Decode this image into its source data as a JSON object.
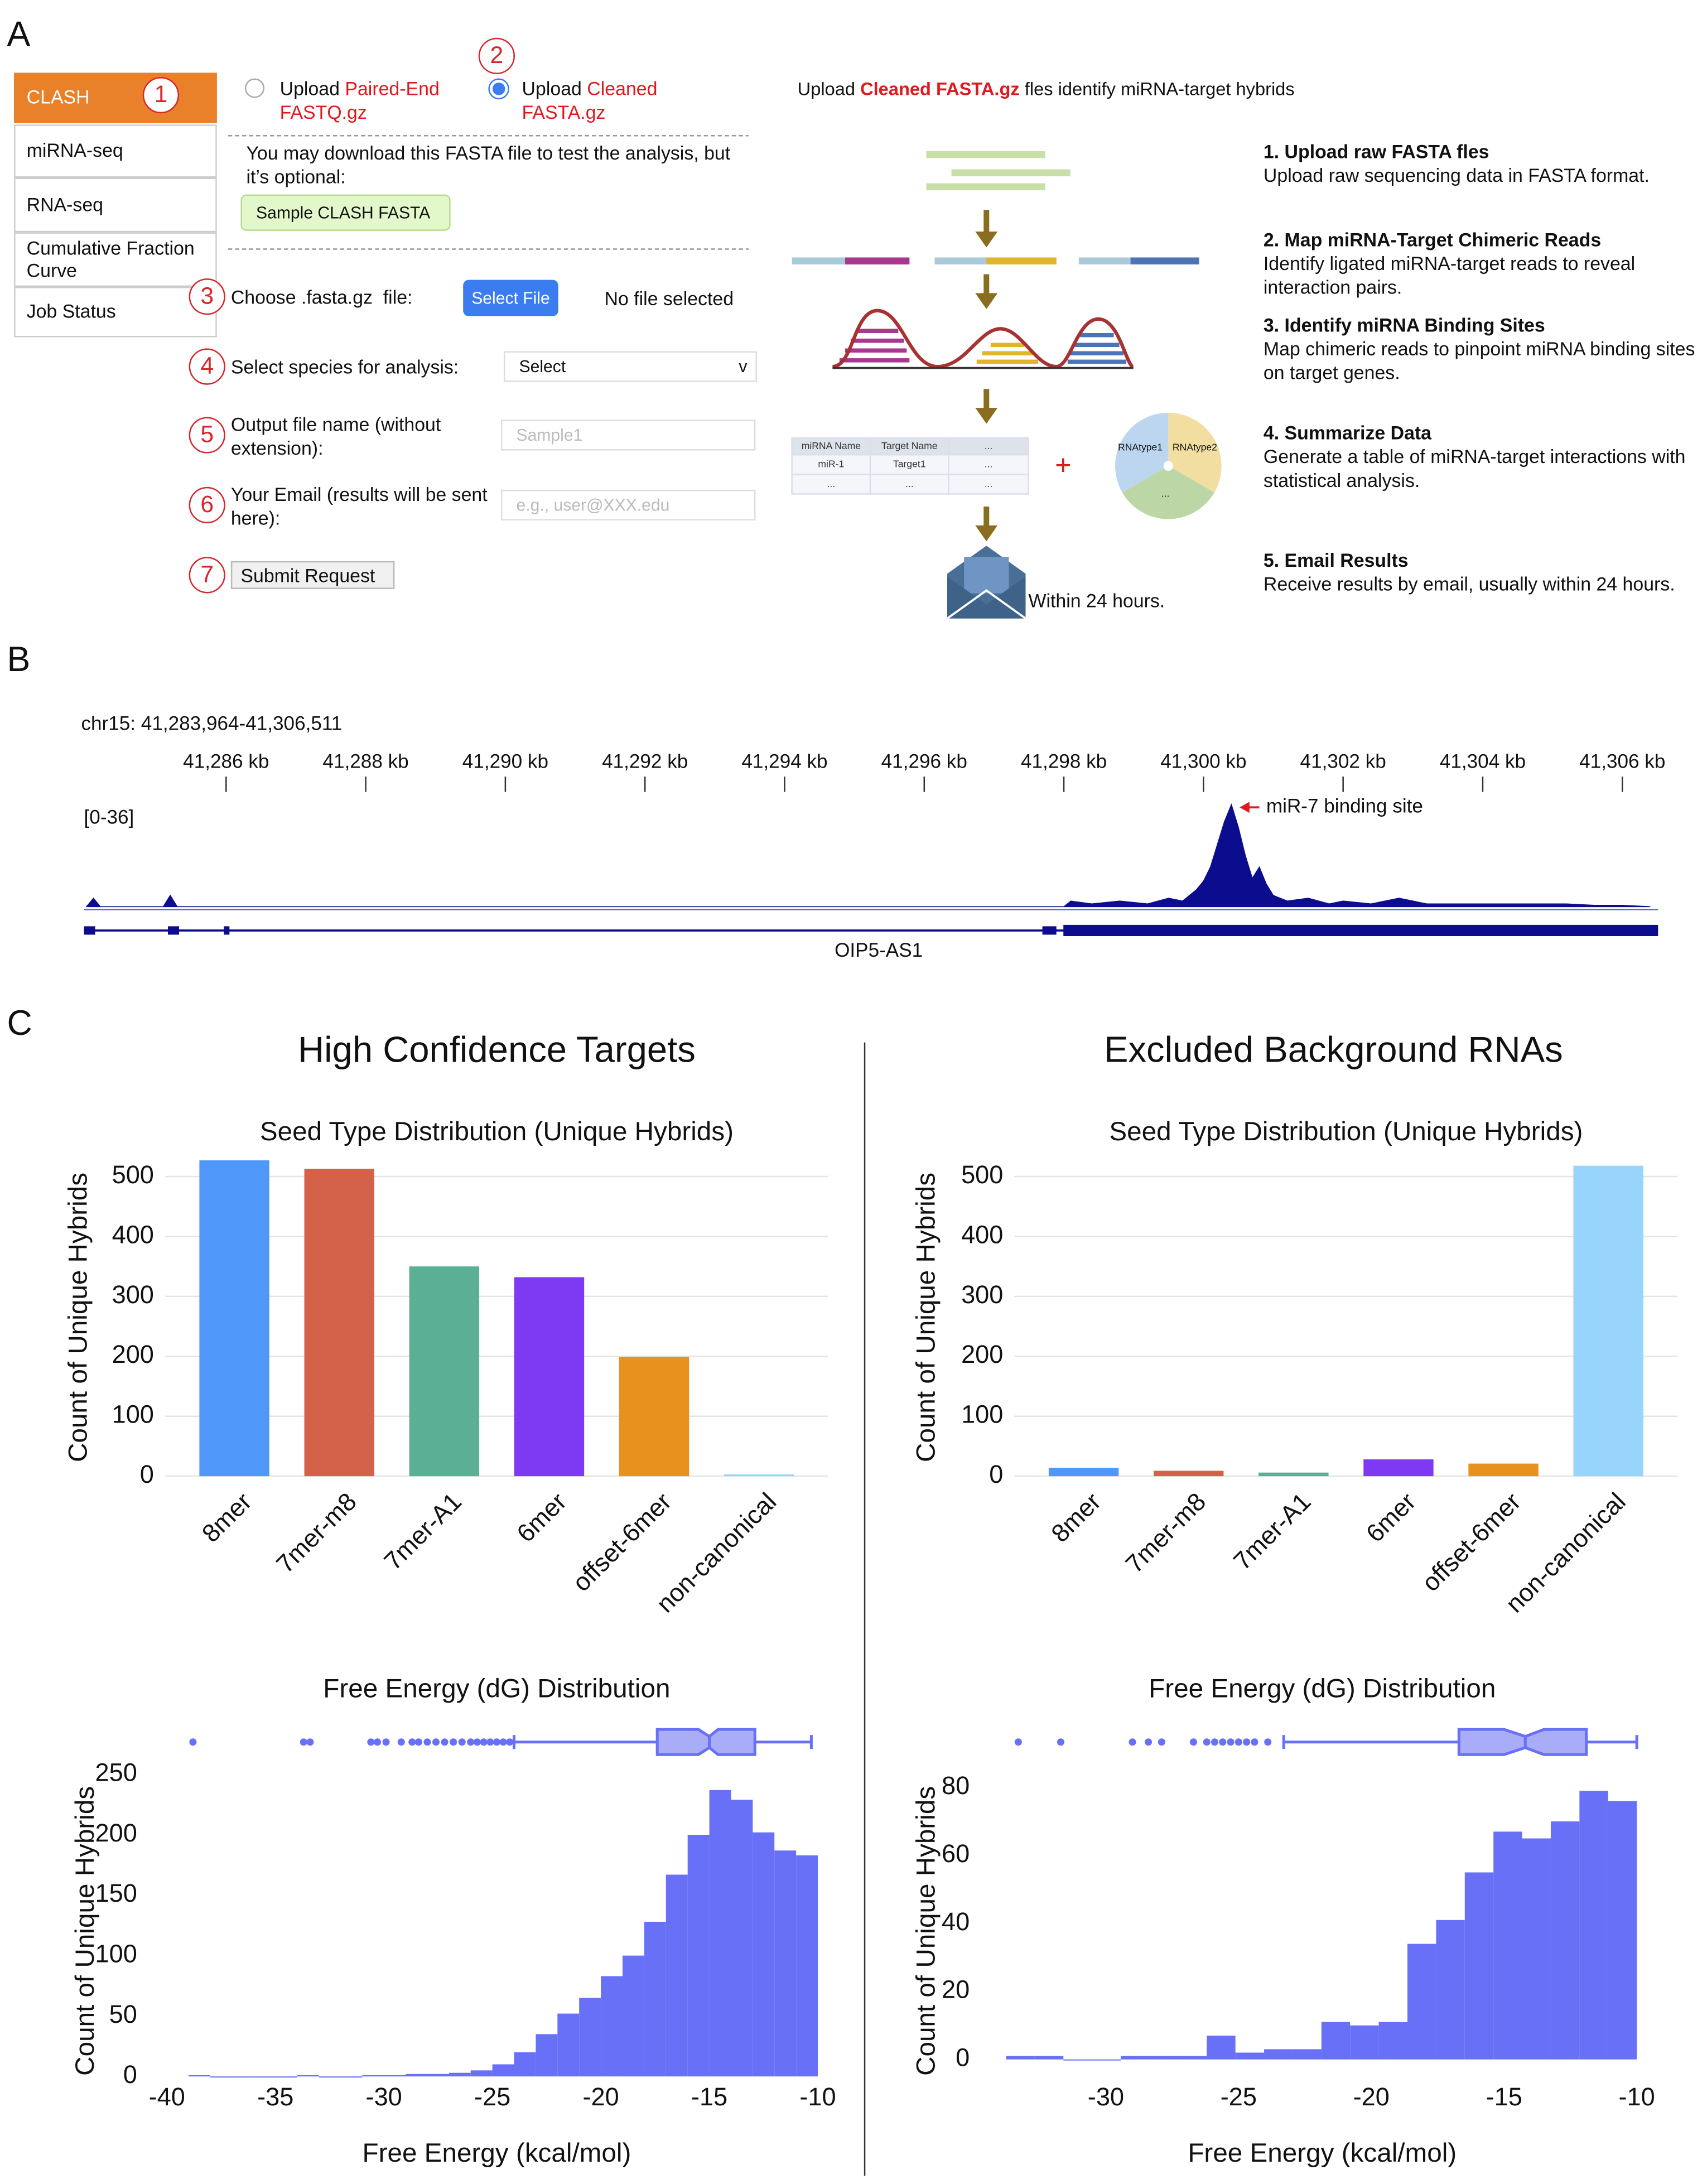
{
  "panel_labels": [
    "A",
    "B",
    "C"
  ],
  "panel_a": {
    "menu": [
      "CLASH",
      "miRNA-seq",
      "RNA-seq",
      "Cumulative Fraction Curve",
      "Job Status"
    ],
    "step_numbers": [
      "1",
      "2",
      "3",
      "4",
      "5",
      "6",
      "7"
    ],
    "upload_options": [
      {
        "prefix": "Upload ",
        "highlight": "Paired-End FASTQ.gz"
      },
      {
        "prefix": "Upload ",
        "highlight": "Cleaned FASTA.gz"
      }
    ],
    "download_note": "You may download this FASTA file to test the analysis, but it’s optional:",
    "sample_button": "Sample CLASH FASTA",
    "choose_label": "Choose .fasta.gz  file:",
    "select_file_button": "Select File",
    "no_file": "No file selected",
    "species_label": "Select species for analysis:",
    "species_select": "Select",
    "select_arrow": "v",
    "output_label": "Output file name (without extension):",
    "output_placeholder": "Sample1",
    "email_label": "Your Email (results will be sent here):",
    "email_placeholder": "e.g., user@XXX.edu",
    "submit": "Submit Request",
    "pipeline_title": {
      "before": "Upload ",
      "highlight": "Cleaned FASTA.gz",
      "after": " fles identify miRNA-target hybrids"
    },
    "table_header": [
      "miRNA Name",
      "Target Name",
      "..."
    ],
    "table_rows": [
      [
        "miR-1",
        "Target1",
        "..."
      ],
      [
        "...",
        "...",
        "..."
      ]
    ],
    "plus": "+",
    "pie_labels": [
      "RNAtype1",
      "RNAtype2",
      "..."
    ],
    "email_note": "Within 24 hours.",
    "steps": [
      {
        "title": "1. Upload raw FASTA fles",
        "text": "Upload raw sequencing data in FASTA format."
      },
      {
        "title": "2. Map miRNA-Target Chimeric Reads",
        "text": "Identify ligated miRNA-target reads to reveal interaction pairs."
      },
      {
        "title": "3. Identify miRNA Binding Sites",
        "text": "Map chimeric reads to pinpoint miRNA binding sites on target genes."
      },
      {
        "title": "4. Summarize Data",
        "text": "Generate a table of miRNA-target interactions with statistical analysis."
      },
      {
        "title": "5. Email Results",
        "text": "Receive results by email, usually within 24 hours."
      }
    ]
  },
  "panel_b": {
    "locus": "chr15: 41,283,964-41,306,511",
    "range_label": "[0-36]",
    "annotation": "miR-7 binding site",
    "gene": "OIP5-AS1"
  },
  "panel_c": {
    "groups": [
      "High Confidence Targets",
      "Excluded Background RNAs"
    ]
  },
  "chart_data": [
    {
      "type": "coverage",
      "color": "#0c0c8e",
      "xlim": [
        41283.964,
        41306.511
      ],
      "xticks": [
        {
          "value": 41286,
          "label": "41,286 kb"
        },
        {
          "value": 41288,
          "label": "41,288 kb"
        },
        {
          "value": 41290,
          "label": "41,290 kb"
        },
        {
          "value": 41292,
          "label": "41,292 kb"
        },
        {
          "value": 41294,
          "label": "41,294 kb"
        },
        {
          "value": 41296,
          "label": "41,296 kb"
        },
        {
          "value": 41298,
          "label": "41,298 kb"
        },
        {
          "value": 41300,
          "label": "41,300 kb"
        },
        {
          "value": 41302,
          "label": "41,302 kb"
        },
        {
          "value": 41304,
          "label": "41,304 kb"
        },
        {
          "value": 41306,
          "label": "41,306 kb"
        }
      ],
      "ylim": [
        0,
        36
      ],
      "x": [
        41284.0,
        41284.1,
        41284.2,
        41285.1,
        41285.2,
        41285.3,
        41298.0,
        41298.1,
        41298.4,
        41298.8,
        41299.2,
        41299.5,
        41299.7,
        41299.9,
        41300.0,
        41300.1,
        41300.2,
        41300.3,
        41300.4,
        41300.5,
        41300.6,
        41300.7,
        41300.8,
        41300.9,
        41301.0,
        41301.2,
        41301.5,
        41301.8,
        41302.0,
        41302.4,
        41302.8,
        41303.2,
        41303.6,
        41304.0,
        41304.4,
        41304.8,
        41305.2,
        41305.6,
        41306.0,
        41306.4
      ],
      "values": [
        0,
        3,
        0,
        0,
        4,
        0,
        0,
        2,
        1,
        2,
        1,
        3,
        2,
        6,
        9,
        14,
        22,
        30,
        36,
        28,
        18,
        10,
        14,
        8,
        4,
        2,
        3,
        1,
        2,
        1,
        3,
        1,
        1,
        1,
        1,
        1,
        1,
        0.5,
        0.5,
        0
      ]
    },
    {
      "type": "bar",
      "title": "Seed Type Distribution (Unique Hybrids)",
      "ylabel": "Count of Unique Hybrids",
      "categories": [
        "8mer",
        "7mer-m8",
        "7mer-A1",
        "6mer",
        "offset-6mer",
        "non-canonical"
      ],
      "values": [
        527,
        513,
        350,
        332,
        199,
        3
      ],
      "colors": [
        "#4f97f9",
        "#d4624a",
        "#5aaf95",
        "#7e3af2",
        "#e8921e",
        "#98d4fb"
      ],
      "ylim": [
        0,
        530
      ],
      "yticks": [
        0,
        100,
        200,
        300,
        400,
        500
      ],
      "grid": true
    },
    {
      "type": "bar",
      "title": "Seed Type Distribution (Unique Hybrids)",
      "ylabel": "Count of Unique Hybrids",
      "categories": [
        "8mer",
        "7mer-m8",
        "7mer-A1",
        "6mer",
        "offset-6mer",
        "non-canonical"
      ],
      "values": [
        14,
        9,
        6,
        28,
        21,
        518
      ],
      "colors": [
        "#4f97f9",
        "#d4624a",
        "#5aaf95",
        "#7e3af2",
        "#e8921e",
        "#98d4fb"
      ],
      "ylim": [
        0,
        530
      ],
      "yticks": [
        0,
        100,
        200,
        300,
        400,
        500
      ],
      "grid": true
    },
    {
      "type": "histogram",
      "title": "Free Energy (dG) Distribution",
      "xlabel": "Free Energy (kcal/mol)",
      "ylabel": "Count of Unique Hybrids",
      "color": "#6870f7",
      "box_color": "#a9adf8",
      "grid": false,
      "bins": [
        -39,
        -38,
        -37,
        -36,
        -35,
        -34,
        -33,
        -32,
        -31,
        -30,
        -29,
        -28,
        -27,
        -26,
        -25,
        -24,
        -23,
        -22,
        -21,
        -20,
        -19,
        -18,
        -17,
        -16,
        -15,
        -14,
        -13,
        -12,
        -11,
        -10
      ],
      "values": [
        1,
        0,
        0,
        0,
        0,
        1,
        0,
        0,
        1,
        1,
        2,
        2,
        3,
        5,
        10,
        20,
        35,
        52,
        65,
        83,
        100,
        128,
        167,
        200,
        237,
        229,
        202,
        187,
        183
      ],
      "xlim": [
        -40.6,
        -9
      ],
      "xticks": [
        -40,
        -35,
        -30,
        -25,
        -20,
        -15,
        -10
      ],
      "ylim": [
        0,
        271
      ],
      "yticks": [
        0,
        50,
        100,
        150,
        200,
        250
      ],
      "box": {
        "whisker_low": -24.0,
        "q1": -17.4,
        "median": -15.0,
        "q3": -12.9,
        "whisker_high": -10.3,
        "notch": [
          -15.5,
          -14.6
        ],
        "outliers": [
          -38.8,
          -33.7,
          -33.4,
          -30.6,
          -30.3,
          -29.9,
          -29.2,
          -28.7,
          -28.4,
          -28.0,
          -27.6,
          -27.2,
          -26.8,
          -26.4,
          -26.0,
          -25.7,
          -25.4,
          -25.1,
          -24.8,
          -24.5,
          -24.2
        ]
      }
    },
    {
      "type": "histogram",
      "title": "Free Energy (dG) Distribution",
      "xlabel": "Free Energy (kcal/mol)",
      "ylabel": "Count of Unique Hybrids",
      "color": "#6870f7",
      "box_color": "#a9adf8",
      "grid": false,
      "bins": [
        -33.76,
        -32.68,
        -31.6,
        -30.52,
        -29.44,
        -28.36,
        -27.28,
        -26.2,
        -25.12,
        -24.04,
        -22.96,
        -21.88,
        -20.8,
        -19.72,
        -18.64,
        -17.56,
        -16.48,
        -15.4,
        -14.32,
        -13.24,
        -12.16,
        -11.08,
        -10
      ],
      "values": [
        1,
        1,
        0,
        0,
        1,
        1,
        1,
        7,
        2,
        3,
        3,
        11,
        10,
        11,
        34,
        41,
        55,
        67,
        65,
        70,
        79,
        76
      ],
      "xlim": [
        -34.5,
        -9.2
      ],
      "xticks": [
        -30,
        -25,
        -20,
        -15,
        -10
      ],
      "ylim": [
        -5,
        88
      ],
      "yticks": [
        0,
        20,
        40,
        60,
        80
      ],
      "box": {
        "whisker_low": -23.3,
        "q1": -16.7,
        "median": -14.2,
        "q3": -11.9,
        "whisker_high": -10.0,
        "notch": [
          -15.0,
          -13.5
        ],
        "outliers": [
          -33.3,
          -31.7,
          -29.0,
          -28.4,
          -27.9,
          -26.7,
          -26.2,
          -25.9,
          -25.6,
          -25.3,
          -25.0,
          -24.7,
          -24.4,
          -23.9
        ]
      }
    }
  ]
}
